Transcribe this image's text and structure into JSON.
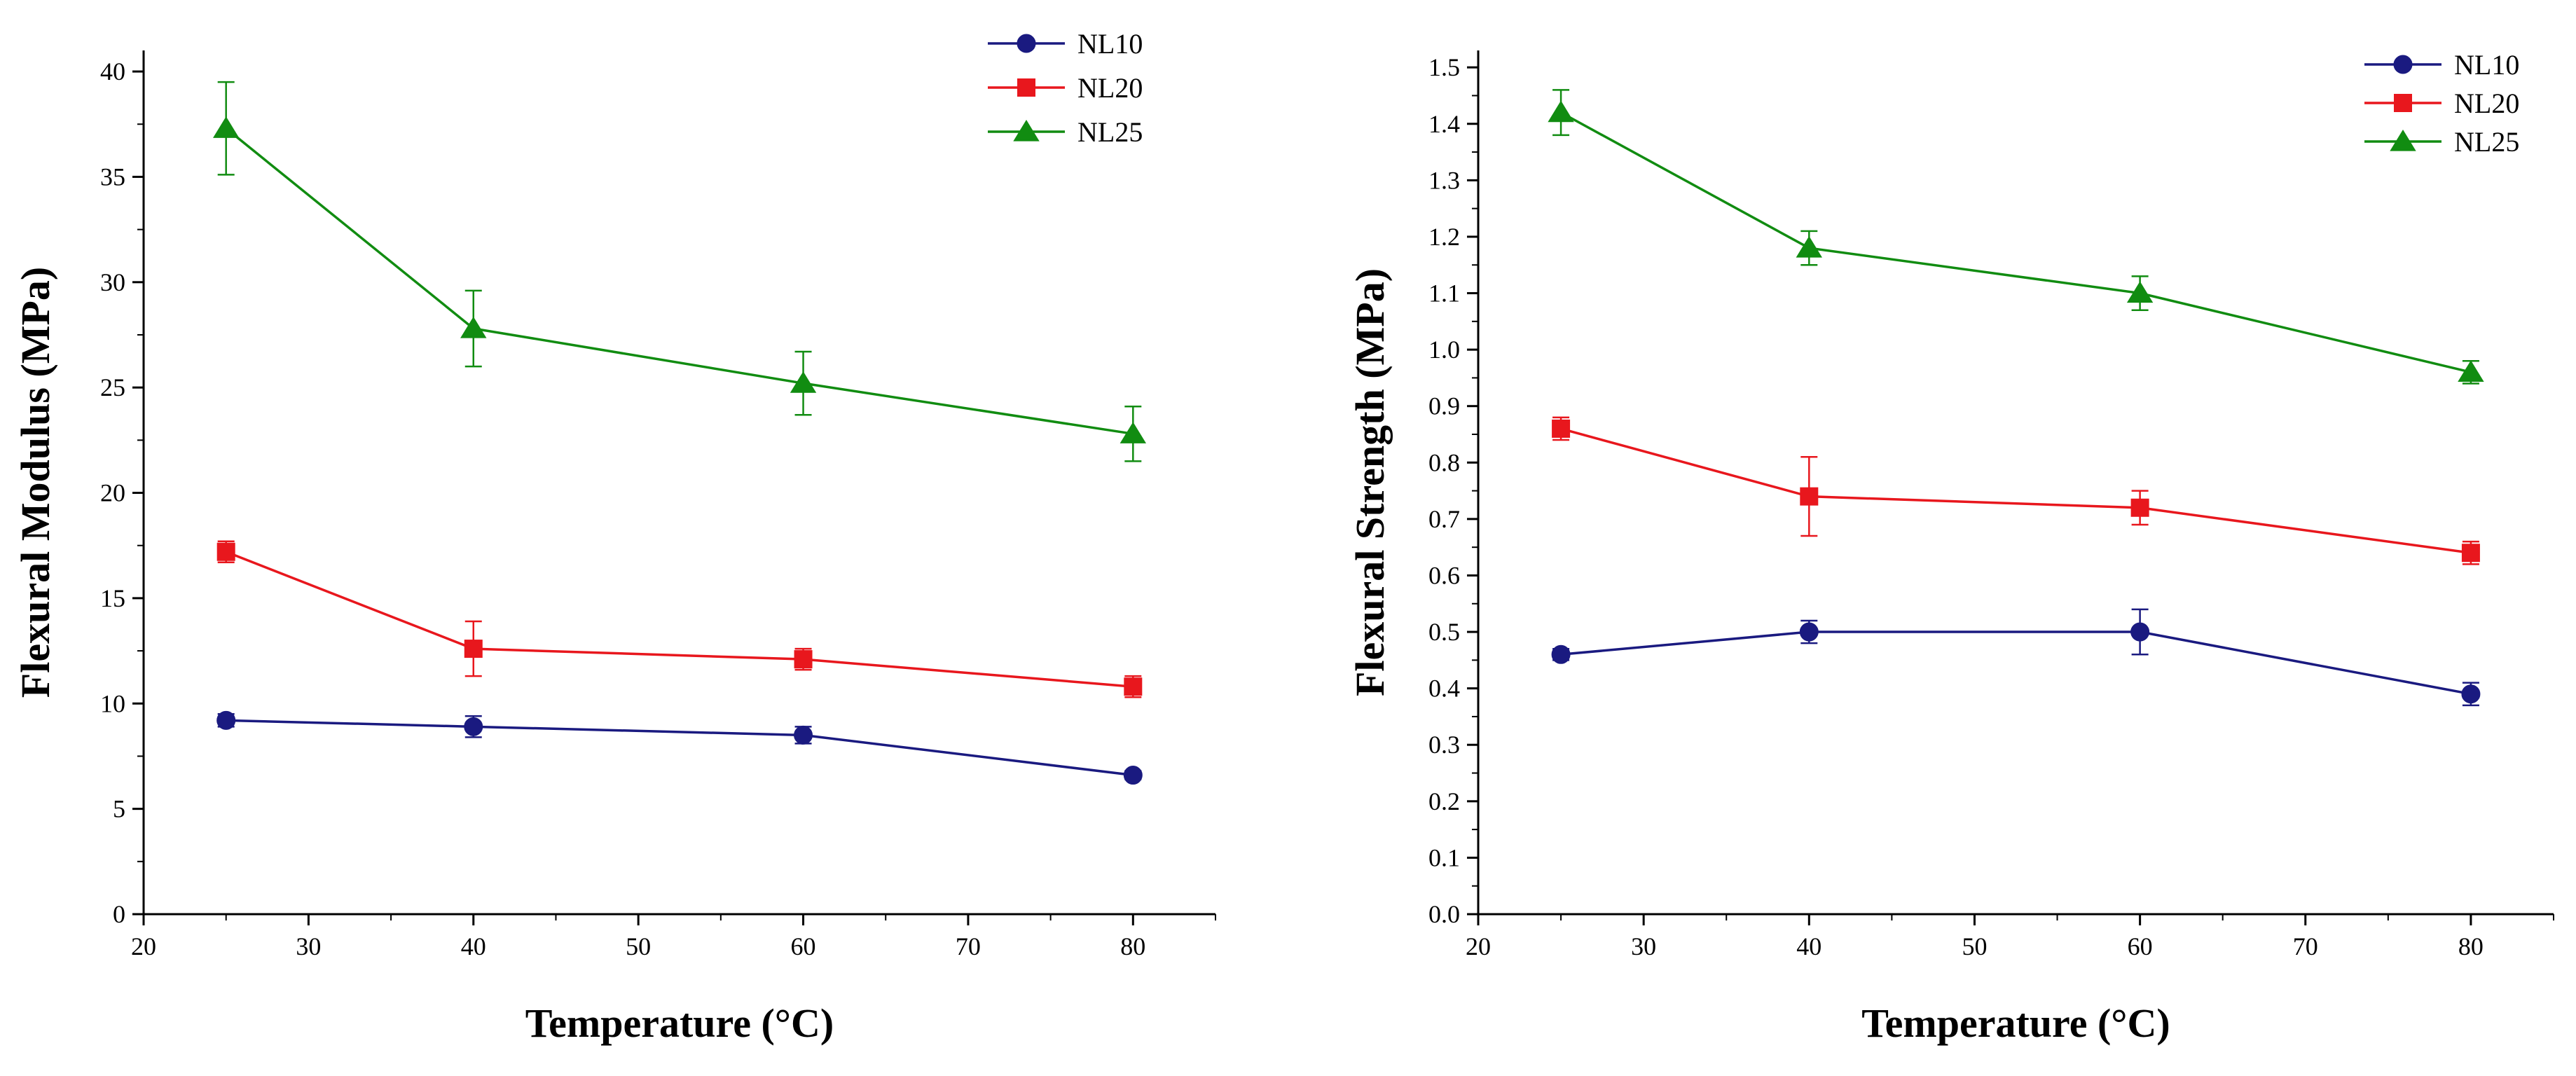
{
  "chart_data": [
    {
      "type": "line",
      "xlabel": "Temperature (°C)",
      "ylabel": "Flexural Modulus (MPa)",
      "xlim": [
        20,
        85
      ],
      "ylim": [
        0,
        41
      ],
      "x_ticks": [
        20,
        30,
        40,
        50,
        60,
        70,
        80
      ],
      "y_ticks": [
        0,
        5,
        10,
        15,
        20,
        25,
        30,
        35,
        40
      ],
      "y_tick_labels": [
        "0",
        "5",
        "10",
        "15",
        "20",
        "25",
        "30",
        "35",
        "40"
      ],
      "legend_position": "top-right",
      "x": [
        25,
        40,
        60,
        80
      ],
      "series": [
        {
          "name": "NL10",
          "color": "#1a1a80",
          "marker": "circle",
          "values": [
            9.2,
            8.9,
            8.5,
            6.6
          ],
          "errors": [
            0.3,
            0.5,
            0.4,
            0.2
          ]
        },
        {
          "name": "NL20",
          "color": "#e8171d",
          "marker": "square",
          "values": [
            17.2,
            12.6,
            12.1,
            10.8
          ],
          "errors": [
            0.5,
            1.3,
            0.5,
            0.5
          ]
        },
        {
          "name": "NL25",
          "color": "#118c11",
          "marker": "triangle",
          "values": [
            37.3,
            27.8,
            25.2,
            22.8
          ],
          "errors": [
            2.2,
            1.8,
            1.5,
            1.3
          ]
        }
      ]
    },
    {
      "type": "line",
      "xlabel": "Temperature (°C)",
      "ylabel": "Flexural Strength (MPa)",
      "xlim": [
        20,
        85
      ],
      "ylim": [
        0,
        1.53
      ],
      "x_ticks": [
        20,
        30,
        40,
        50,
        60,
        70,
        80
      ],
      "y_ticks": [
        0,
        0.1,
        0.2,
        0.3,
        0.4,
        0.5,
        0.6,
        0.7,
        0.8,
        0.9,
        1.0,
        1.1,
        1.2,
        1.3,
        1.4,
        1.5
      ],
      "y_tick_labels": [
        "0.0",
        "0.1",
        "0.2",
        "0.3",
        "0.4",
        "0.5",
        "0.6",
        "0.7",
        "0.8",
        "0.9",
        "1.0",
        "1.1",
        "1.2",
        "1.3",
        "1.4",
        "1.5"
      ],
      "legend_position": "top-right",
      "x": [
        25,
        40,
        60,
        80
      ],
      "series": [
        {
          "name": "NL10",
          "color": "#1a1a80",
          "marker": "circle",
          "values": [
            0.46,
            0.5,
            0.5,
            0.39
          ],
          "errors": [
            0.01,
            0.02,
            0.04,
            0.02
          ]
        },
        {
          "name": "NL20",
          "color": "#e8171d",
          "marker": "square",
          "values": [
            0.86,
            0.74,
            0.72,
            0.64
          ],
          "errors": [
            0.02,
            0.07,
            0.03,
            0.02
          ]
        },
        {
          "name": "NL25",
          "color": "#118c11",
          "marker": "triangle",
          "values": [
            1.42,
            1.18,
            1.1,
            0.96
          ],
          "errors": [
            0.04,
            0.03,
            0.03,
            0.02
          ]
        }
      ]
    }
  ]
}
